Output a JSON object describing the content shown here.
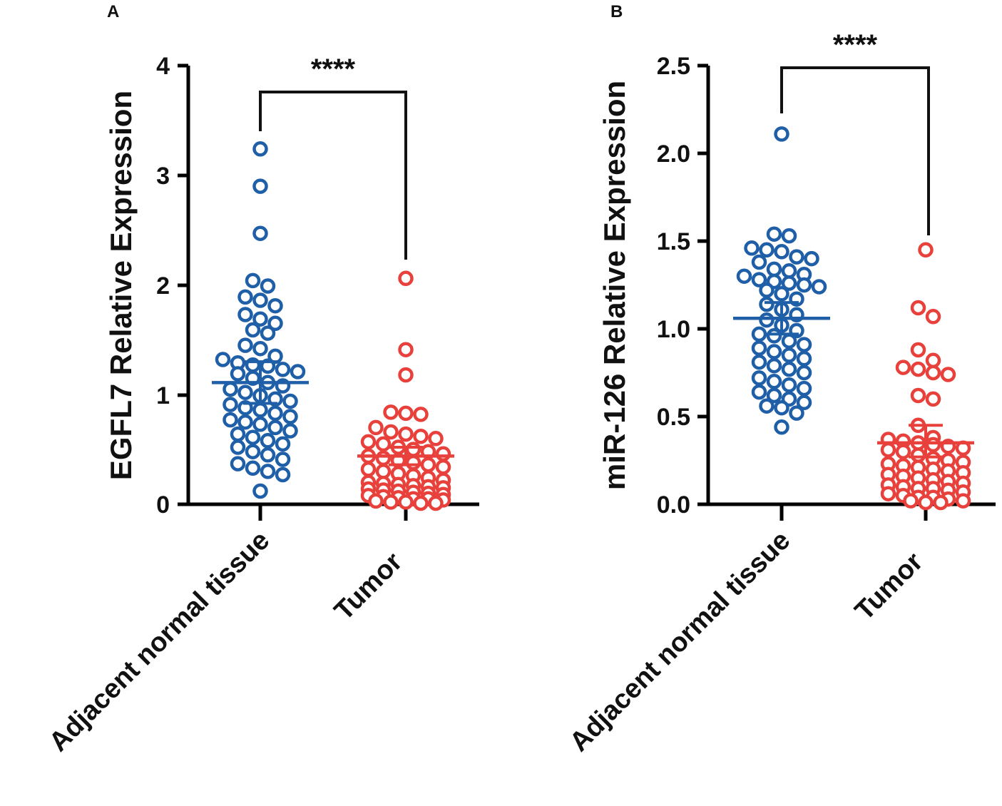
{
  "chart_data": [
    {
      "type": "scatter",
      "panel": "A",
      "ylabel": "EGFL7 Relative Expression",
      "ylim": [
        0,
        4
      ],
      "yticks": [
        "0",
        "1",
        "2",
        "3",
        "4"
      ],
      "significance": "****",
      "groups": [
        {
          "name": "Adjacent normal tissue",
          "color": "#1f5fa8",
          "mean": 1.11,
          "sem_upper": 1.3,
          "sem_lower": 0.92,
          "values": [
            3.24,
            2.9,
            2.47,
            2.04,
            1.99,
            1.89,
            1.86,
            1.81,
            1.73,
            1.69,
            1.65,
            1.59,
            1.56,
            1.45,
            1.42,
            1.35,
            1.32,
            1.29,
            1.27,
            1.26,
            1.23,
            1.21,
            1.19,
            1.15,
            1.11,
            1.08,
            1.05,
            1.02,
            0.99,
            0.96,
            0.94,
            0.91,
            0.88,
            0.86,
            0.83,
            0.8,
            0.77,
            0.75,
            0.73,
            0.7,
            0.67,
            0.64,
            0.61,
            0.58,
            0.55,
            0.52,
            0.48,
            0.45,
            0.41,
            0.37,
            0.33,
            0.3,
            0.27,
            0.12
          ]
        },
        {
          "name": "Tumor",
          "color": "#e8413c",
          "mean": 0.44,
          "sem_upper": 0.52,
          "sem_lower": 0.36,
          "values": [
            2.06,
            1.41,
            1.18,
            0.84,
            0.83,
            0.82,
            0.7,
            0.66,
            0.64,
            0.62,
            0.6,
            0.57,
            0.55,
            0.52,
            0.5,
            0.48,
            0.46,
            0.44,
            0.42,
            0.4,
            0.38,
            0.36,
            0.34,
            0.32,
            0.3,
            0.28,
            0.26,
            0.24,
            0.22,
            0.2,
            0.19,
            0.18,
            0.17,
            0.16,
            0.15,
            0.14,
            0.13,
            0.12,
            0.11,
            0.1,
            0.09,
            0.08,
            0.07,
            0.06,
            0.05,
            0.05,
            0.04,
            0.03,
            0.02,
            0.02,
            0.01,
            0.01
          ]
        }
      ]
    },
    {
      "type": "scatter",
      "panel": "B",
      "ylabel": "miR-126 Relative Expression",
      "ylim": [
        0,
        2.5
      ],
      "yticks": [
        "0.0",
        "0.5",
        "1.0",
        "1.5",
        "2.0",
        "2.5"
      ],
      "significance": "****",
      "groups": [
        {
          "name": "Adjacent normal tissue",
          "color": "#1f5fa8",
          "mean": 1.06,
          "sem_upper": 1.15,
          "sem_lower": 0.97,
          "values": [
            2.11,
            1.54,
            1.53,
            1.46,
            1.45,
            1.44,
            1.41,
            1.4,
            1.38,
            1.34,
            1.33,
            1.31,
            1.3,
            1.28,
            1.27,
            1.26,
            1.25,
            1.24,
            1.22,
            1.2,
            1.17,
            1.14,
            1.11,
            1.08,
            1.05,
            1.02,
            0.99,
            0.97,
            0.96,
            0.93,
            0.91,
            0.89,
            0.87,
            0.85,
            0.83,
            0.81,
            0.79,
            0.77,
            0.75,
            0.72,
            0.7,
            0.68,
            0.66,
            0.64,
            0.62,
            0.6,
            0.58,
            0.56,
            0.55,
            0.52,
            0.44
          ]
        },
        {
          "name": "Tumor",
          "color": "#e8413c",
          "mean": 0.35,
          "sem_upper": 0.45,
          "sem_lower": 0.27,
          "values": [
            1.45,
            1.12,
            1.07,
            0.88,
            0.82,
            0.78,
            0.77,
            0.75,
            0.74,
            0.62,
            0.6,
            0.45,
            0.38,
            0.37,
            0.36,
            0.35,
            0.34,
            0.33,
            0.32,
            0.31,
            0.3,
            0.28,
            0.26,
            0.25,
            0.24,
            0.23,
            0.22,
            0.21,
            0.2,
            0.19,
            0.18,
            0.17,
            0.16,
            0.15,
            0.14,
            0.13,
            0.12,
            0.11,
            0.1,
            0.09,
            0.09,
            0.08,
            0.07,
            0.06,
            0.05,
            0.04,
            0.04,
            0.03,
            0.02,
            0.02,
            0.01,
            0.01
          ]
        }
      ]
    }
  ]
}
